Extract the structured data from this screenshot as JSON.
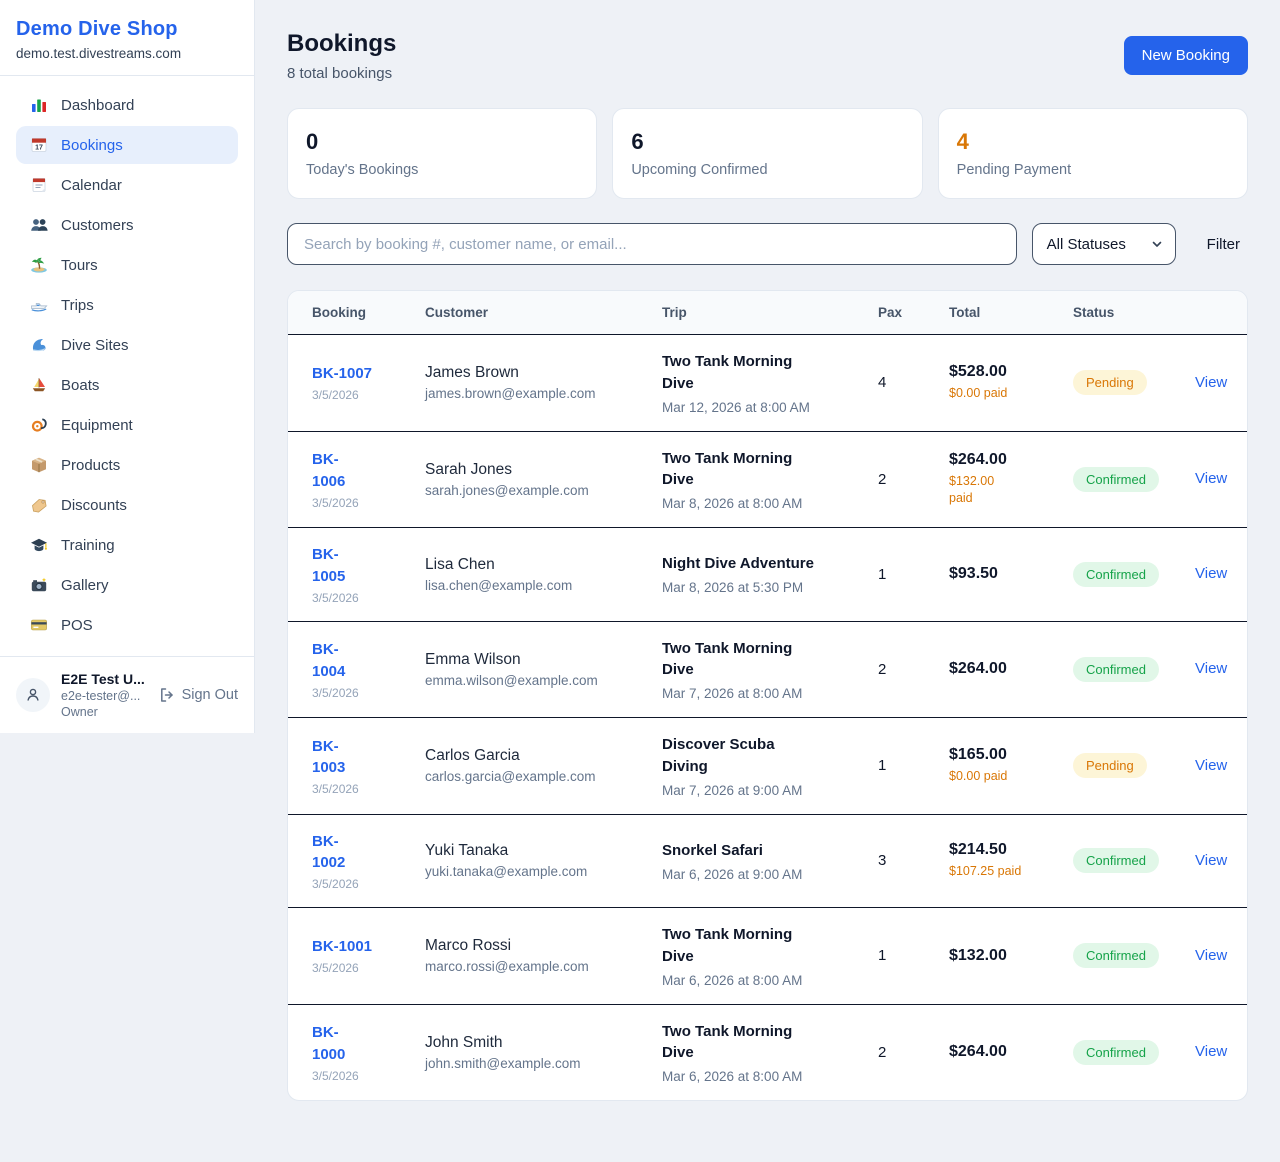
{
  "sidebar": {
    "brand": {
      "title": "Demo Dive Shop",
      "domain": "demo.test.divestreams.com"
    },
    "items": [
      {
        "id": "dashboard",
        "label": "Dashboard",
        "icon": "dashboard-icon",
        "active": false
      },
      {
        "id": "bookings",
        "label": "Bookings",
        "icon": "bookings-icon",
        "active": true
      },
      {
        "id": "calendar",
        "label": "Calendar",
        "icon": "calendar-icon",
        "active": false
      },
      {
        "id": "customers",
        "label": "Customers",
        "icon": "customers-icon",
        "active": false
      },
      {
        "id": "tours",
        "label": "Tours",
        "icon": "tours-icon",
        "active": false
      },
      {
        "id": "trips",
        "label": "Trips",
        "icon": "trips-icon",
        "active": false
      },
      {
        "id": "dive-sites",
        "label": "Dive Sites",
        "icon": "dive-sites-icon",
        "active": false
      },
      {
        "id": "boats",
        "label": "Boats",
        "icon": "boats-icon",
        "active": false
      },
      {
        "id": "equipment",
        "label": "Equipment",
        "icon": "equipment-icon",
        "active": false
      },
      {
        "id": "products",
        "label": "Products",
        "icon": "products-icon",
        "active": false
      },
      {
        "id": "discounts",
        "label": "Discounts",
        "icon": "discounts-icon",
        "active": false
      },
      {
        "id": "training",
        "label": "Training",
        "icon": "training-icon",
        "active": false
      },
      {
        "id": "gallery",
        "label": "Gallery",
        "icon": "gallery-icon",
        "active": false
      },
      {
        "id": "pos",
        "label": "POS",
        "icon": "pos-icon",
        "active": false
      }
    ],
    "user": {
      "name": "E2E Test U...",
      "email": "e2e-tester@...",
      "role": "Owner",
      "sign_out_label": "Sign Out"
    }
  },
  "header": {
    "title": "Bookings",
    "subtitle": "8 total bookings",
    "new_booking_label": "New Booking"
  },
  "stats": [
    {
      "value": "0",
      "label": "Today's Bookings",
      "value_color": "#0f172a"
    },
    {
      "value": "6",
      "label": "Upcoming Confirmed",
      "value_color": "#0f172a"
    },
    {
      "value": "4",
      "label": "Pending Payment",
      "value_color": "#d97706"
    }
  ],
  "controls": {
    "search_placeholder": "Search by booking #, customer name, or email...",
    "status_filter_value": "All Statuses",
    "filter_label": "Filter"
  },
  "table": {
    "columns": [
      "Booking",
      "Customer",
      "Trip",
      "Pax",
      "Total",
      "Status"
    ],
    "view_label": "View",
    "rows": [
      {
        "number": "BK-1007",
        "date": "3/5/2026",
        "name": "James Brown",
        "email": "james.brown@example.com",
        "trip": "Two Tank Morning\nDive",
        "when": "Mar 12, 2026 at 8:00 AM",
        "pax": "4",
        "total": "$528.00",
        "paid": "$0.00 paid",
        "status": "Pending"
      },
      {
        "number": "BK-\n1006",
        "date": "3/5/2026",
        "name": "Sarah Jones",
        "email": "sarah.jones@example.com",
        "trip": "Two Tank Morning\nDive",
        "when": "Mar 8, 2026 at 8:00 AM",
        "pax": "2",
        "total": "$264.00",
        "paid": "$132.00\npaid",
        "status": "Confirmed"
      },
      {
        "number": "BK-\n1005",
        "date": "3/5/2026",
        "name": "Lisa Chen",
        "email": "lisa.chen@example.com",
        "trip": "Night Dive Adventure",
        "when": "Mar 8, 2026 at 5:30 PM",
        "pax": "1",
        "total": "$93.50",
        "paid": "",
        "status": "Confirmed"
      },
      {
        "number": "BK-\n1004",
        "date": "3/5/2026",
        "name": "Emma Wilson",
        "email": "emma.wilson@example.com",
        "trip": "Two Tank Morning\nDive",
        "when": "Mar 7, 2026 at 8:00 AM",
        "pax": "2",
        "total": "$264.00",
        "paid": "",
        "status": "Confirmed"
      },
      {
        "number": "BK-\n1003",
        "date": "3/5/2026",
        "name": "Carlos Garcia",
        "email": "carlos.garcia@example.com",
        "trip": "Discover Scuba\nDiving",
        "when": "Mar 7, 2026 at 9:00 AM",
        "pax": "1",
        "total": "$165.00",
        "paid": "$0.00 paid",
        "status": "Pending"
      },
      {
        "number": "BK-\n1002",
        "date": "3/5/2026",
        "name": "Yuki Tanaka",
        "email": "yuki.tanaka@example.com",
        "trip": "Snorkel Safari",
        "when": "Mar 6, 2026 at 9:00 AM",
        "pax": "3",
        "total": "$214.50",
        "paid": "$107.25 paid",
        "status": "Confirmed"
      },
      {
        "number": "BK-1001",
        "date": "3/5/2026",
        "name": "Marco Rossi",
        "email": "marco.rossi@example.com",
        "trip": "Two Tank Morning\nDive",
        "when": "Mar 6, 2026 at 8:00 AM",
        "pax": "1",
        "total": "$132.00",
        "paid": "",
        "status": "Confirmed"
      },
      {
        "number": "BK-\n1000",
        "date": "3/5/2026",
        "name": "John Smith",
        "email": "john.smith@example.com",
        "trip": "Two Tank Morning\nDive",
        "when": "Mar 6, 2026 at 8:00 AM",
        "pax": "2",
        "total": "$264.00",
        "paid": "",
        "status": "Confirmed"
      }
    ]
  },
  "colors": {
    "accent": "#2563eb",
    "paid_text": "#d97706",
    "status_styles": {
      "Pending": {
        "bg": "#fdf5d7",
        "text": "#d97706"
      },
      "Confirmed": {
        "bg": "#e1f7e8",
        "text": "#16a34a"
      }
    }
  }
}
